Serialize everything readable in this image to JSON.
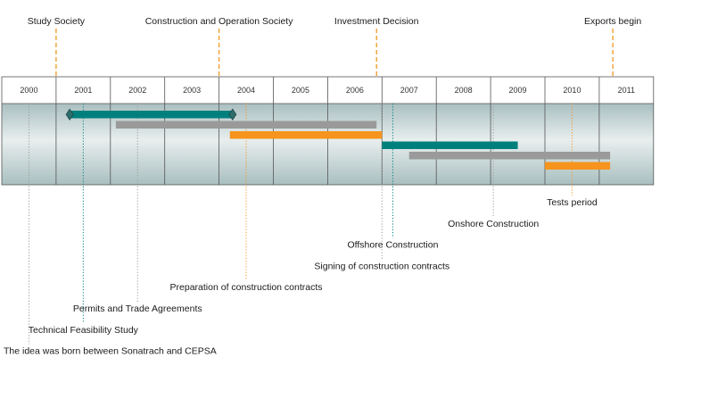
{
  "timeline": {
    "years": [
      "2000",
      "2001",
      "2002",
      "2003",
      "2004",
      "2005",
      "2006",
      "2007",
      "2008",
      "2009",
      "2010",
      "2011"
    ],
    "colors": {
      "teal": "#00807d",
      "gray": "#9a9a9a",
      "orange": "#f7941d",
      "milestone_dash": "#f0a030",
      "band_dark": "#a9bfc0",
      "band_light": "#e8eeee"
    },
    "milestones": [
      {
        "label": "Study Society",
        "year": 2001
      },
      {
        "label": "Construction and Operation Society",
        "year": 2004
      },
      {
        "label": "Investment Decision",
        "year": 2006.9
      },
      {
        "label": "Exports begin",
        "year": 2011.25
      }
    ],
    "bars": [
      {
        "color": "teal",
        "start": 2001.25,
        "end": 2004.25,
        "diamonds": true
      },
      {
        "color": "gray",
        "start": 2002.1,
        "end": 2006.9
      },
      {
        "color": "orange",
        "start": 2004.2,
        "end": 2007.0
      },
      {
        "color": "teal",
        "start": 2007.0,
        "end": 2009.5
      },
      {
        "color": "gray",
        "start": 2007.5,
        "end": 2011.2
      },
      {
        "color": "orange",
        "start": 2010.0,
        "end": 2011.2
      }
    ],
    "events": [
      {
        "label": "Tests period",
        "year": 2010.5,
        "color": "orange"
      },
      {
        "label": "Onshore Construction",
        "year": 2009.05,
        "color": "gray"
      },
      {
        "label": "Offshore Construction",
        "year": 2007.2,
        "color": "teal"
      },
      {
        "label": "Signing of construction contracts",
        "year": 2007.0,
        "color": "gray"
      },
      {
        "label": "Preparation of construction contracts",
        "year": 2004.5,
        "color": "orange"
      },
      {
        "label": "Permits and Trade Agreements",
        "year": 2002.5,
        "color": "gray"
      },
      {
        "label": "Technical Feasibility Study",
        "year": 2001.5,
        "color": "teal"
      },
      {
        "label": "The idea was born between Sonatrach and CEPSA",
        "year": 2000.5,
        "color": "gray"
      }
    ]
  }
}
